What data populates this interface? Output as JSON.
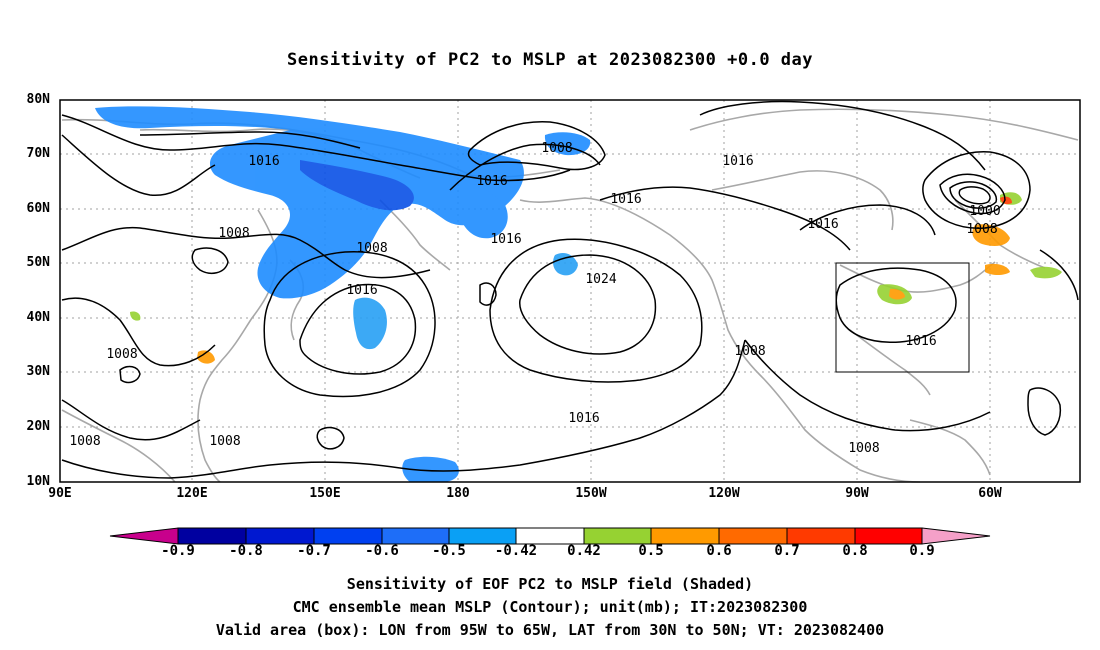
{
  "title": "Sensitivity of PC2 to MSLP at 2023082300 +0.0 day",
  "lat_labels": [
    "80N",
    "70N",
    "60N",
    "50N",
    "40N",
    "30N",
    "20N",
    "10N"
  ],
  "lon_labels": [
    "90E",
    "120E",
    "150E",
    "180",
    "150W",
    "120W",
    "90W",
    "60W"
  ],
  "contour_labels": [
    "1016",
    "1008",
    "1016",
    "1016",
    "1016",
    "1016",
    "1008",
    "1008",
    "1016",
    "1024",
    "1016",
    "1000",
    "1008",
    "1008",
    "1016",
    "1008",
    "1016",
    "1008",
    "1008",
    "1008"
  ],
  "colorbar": {
    "ticks": [
      "-0.9",
      "-0.8",
      "-0.7",
      "-0.6",
      "-0.5",
      "-0.42",
      "0.42",
      "0.5",
      "0.6",
      "0.7",
      "0.8",
      "0.9"
    ],
    "colors": [
      "#c8008c",
      "#0000a0",
      "#0018d0",
      "#0040f0",
      "#1e6ef8",
      "#0aa0f5",
      "#00c8ff",
      "#ffffff",
      "#96d232",
      "#ff9a00",
      "#ff6a00",
      "#ff3a00",
      "#ff0000",
      "#f5a0c8"
    ]
  },
  "captions": [
    "Sensitivity of EOF PC2 to MSLP field (Shaded)",
    "CMC ensemble mean MSLP (Contour); unit(mb); IT:2023082300",
    "Valid area (box): LON from 95W to 65W, LAT from 30N to 50N; VT: 2023082400"
  ]
}
